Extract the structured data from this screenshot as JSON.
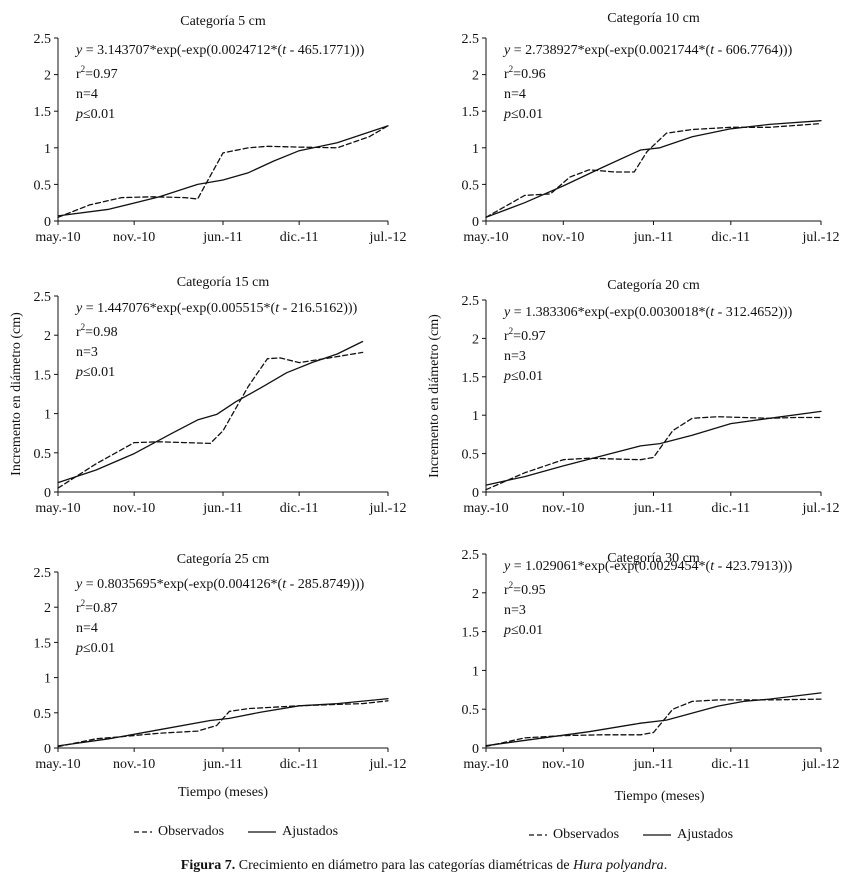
{
  "figure": {
    "caption_label": "Figura 7.",
    "caption_text": "Crecimiento en diámetro para las categorías diamétricas de",
    "caption_species": "Hura polyandra",
    "caption_end": ".",
    "legend_observed": "Observados",
    "legend_fitted": "Ajustados",
    "shared_ylabel": "Incremento en diámetro (cm)",
    "shared_xlabel": "Tiempo (meses)"
  },
  "chart_data": [
    {
      "type": "line",
      "title": "Categoría 5 cm",
      "x_ticks": [
        "may.-10",
        "nov.-10",
        "jun.-11",
        "dic.-11",
        "jul.-12"
      ],
      "y_ticks": [
        "0",
        "0.5",
        "1",
        "1.5",
        "2",
        "2.5"
      ],
      "ylim": [
        0,
        2.5
      ],
      "xlim": [
        0,
        26
      ],
      "equation": {
        "prefix": "y",
        "coef": " = 3.143707",
        "rest": "*exp(-exp(0.0024712*(",
        "t": "t",
        "tail": " - 465.1771)))"
      },
      "r2": {
        "r": "r",
        "sup": "2",
        "val": "=0.97"
      },
      "n": "n=4",
      "p": {
        "sym": "p",
        "val": "≤0.01"
      },
      "series": [
        {
          "name": "Observados",
          "x": [
            0,
            2.5,
            5,
            7.5,
            10,
            11,
            13,
            15,
            16.5,
            19,
            22,
            24.5,
            26
          ],
          "y": [
            0.05,
            0.22,
            0.32,
            0.33,
            0.32,
            0.3,
            0.93,
            1.0,
            1.02,
            1.01,
            1.0,
            1.15,
            1.3
          ]
        },
        {
          "name": "Ajustados",
          "x": [
            0,
            4,
            8,
            11,
            13,
            15,
            17,
            19,
            22,
            26
          ],
          "y": [
            0.07,
            0.16,
            0.33,
            0.5,
            0.56,
            0.66,
            0.82,
            0.96,
            1.07,
            1.3
          ]
        }
      ]
    },
    {
      "type": "line",
      "title": "Categoría 10 cm",
      "x_ticks": [
        "may.-10",
        "nov.-10",
        "jun.-11",
        "dic.-11",
        "jul.-12"
      ],
      "y_ticks": [
        "0",
        "0.5",
        "1",
        "1.5",
        "2",
        "2.5"
      ],
      "ylim": [
        0,
        2.5
      ],
      "xlim": [
        0,
        26
      ],
      "equation": {
        "prefix": "y",
        "coef": " = 2.738927",
        "rest": "*exp(-exp(0.0021744*(",
        "t": "t",
        "tail": " - 606.7764)))"
      },
      "r2": {
        "r": "r",
        "sup": "2",
        "val": "=0.96"
      },
      "n": "n=4",
      "p": {
        "sym": "p",
        "val": "≤0.01"
      },
      "series": [
        {
          "name": "Observados",
          "x": [
            0,
            3,
            5,
            6.5,
            8,
            10,
            11.5,
            12.5,
            14,
            16,
            19,
            22,
            26
          ],
          "y": [
            0.05,
            0.35,
            0.37,
            0.6,
            0.7,
            0.67,
            0.67,
            0.95,
            1.2,
            1.25,
            1.28,
            1.28,
            1.33
          ]
        },
        {
          "name": "Ajustados",
          "x": [
            0,
            3,
            6,
            9,
            12,
            13.5,
            16,
            19,
            22,
            26
          ],
          "y": [
            0.05,
            0.25,
            0.48,
            0.73,
            0.97,
            1.0,
            1.15,
            1.26,
            1.32,
            1.37
          ]
        }
      ]
    },
    {
      "type": "line",
      "title": "Categoría 15 cm",
      "x_ticks": [
        "may.-10",
        "nov.-10",
        "jun.-11",
        "dic.-11",
        "jul.-12"
      ],
      "y_ticks": [
        "0",
        "0.5",
        "1",
        "1.5",
        "2",
        "2.5"
      ],
      "ylim": [
        0,
        2.5
      ],
      "xlim": [
        0,
        26
      ],
      "equation": {
        "prefix": "y",
        "coef": " = 1.447076",
        "rest": "*exp(-exp(0.005515*(",
        "t": "t",
        "tail": " - 216.5162)))"
      },
      "r2": {
        "r": "r",
        "sup": "2",
        "val": "=0.98"
      },
      "n": "n=3",
      "p": {
        "sym": "p",
        "val": "≤0.01"
      },
      "series": [
        {
          "name": "Observados",
          "x": [
            0,
            3,
            6,
            8,
            10,
            12,
            13,
            15,
            16.5,
            17.5,
            19,
            21,
            24
          ],
          "y": [
            0.05,
            0.36,
            0.63,
            0.64,
            0.63,
            0.62,
            0.78,
            1.35,
            1.7,
            1.71,
            1.65,
            1.7,
            1.78
          ]
        },
        {
          "name": "Ajustados",
          "x": [
            0,
            3,
            6,
            9,
            11,
            12.5,
            14,
            16,
            18,
            20,
            22,
            24
          ],
          "y": [
            0.12,
            0.28,
            0.49,
            0.75,
            0.92,
            0.99,
            1.15,
            1.33,
            1.52,
            1.65,
            1.76,
            1.92
          ]
        }
      ]
    },
    {
      "type": "line",
      "title": "Categoría 20 cm",
      "x_ticks": [
        "may.-10",
        "nov.-10",
        "jun.-11",
        "dic.-11",
        "jul.-12"
      ],
      "y_ticks": [
        "0",
        "0.5",
        "1",
        "1.5",
        "2",
        "2.5"
      ],
      "ylim": [
        0,
        2.5
      ],
      "xlim": [
        0,
        26
      ],
      "equation": {
        "prefix": "y",
        "coef": " = 1.383306",
        "rest": "*exp(-exp(0.0030018*(",
        "t": "t",
        "tail": " - 312.4652)))"
      },
      "r2": {
        "r": "r",
        "sup": "2",
        "val": "=0.97"
      },
      "n": "n=3",
      "p": {
        "sym": "p",
        "val": "≤0.01"
      },
      "series": [
        {
          "name": "Observados",
          "x": [
            0,
            3,
            6,
            8,
            10,
            12,
            13,
            14.5,
            16,
            18,
            20,
            22,
            24,
            26
          ],
          "y": [
            0.03,
            0.25,
            0.42,
            0.44,
            0.43,
            0.42,
            0.45,
            0.8,
            0.96,
            0.98,
            0.97,
            0.96,
            0.97,
            0.97
          ]
        },
        {
          "name": "Ajustados",
          "x": [
            0,
            3,
            6,
            9,
            12,
            13.5,
            16,
            19,
            22,
            26
          ],
          "y": [
            0.09,
            0.2,
            0.34,
            0.47,
            0.6,
            0.63,
            0.74,
            0.89,
            0.96,
            1.05
          ]
        }
      ]
    },
    {
      "type": "line",
      "title": "Categoría 25 cm",
      "x_ticks": [
        "may.-10",
        "nov.-10",
        "jun.-11",
        "dic.-11",
        "jul.-12"
      ],
      "y_ticks": [
        "0",
        "0.5",
        "1",
        "1.5",
        "2",
        "2.5"
      ],
      "ylim": [
        0,
        2.5
      ],
      "xlim": [
        0,
        26
      ],
      "equation": {
        "prefix": "y",
        "coef": " = 0.8035695",
        "rest": "*exp(-exp(0.004126*(",
        "t": "t",
        "tail": " - 285.8749)))"
      },
      "r2": {
        "r": "r",
        "sup": "2",
        "val": "=0.87"
      },
      "n": "n=4",
      "p": {
        "sym": "p",
        "val": "≤0.01"
      },
      "series": [
        {
          "name": "Observados",
          "x": [
            0,
            3,
            5,
            8,
            11,
            12.5,
            13.5,
            15,
            17,
            19,
            22,
            24,
            26
          ],
          "y": [
            0.02,
            0.13,
            0.16,
            0.21,
            0.24,
            0.32,
            0.52,
            0.56,
            0.58,
            0.6,
            0.62,
            0.63,
            0.67
          ]
        },
        {
          "name": "Ajustados",
          "x": [
            0,
            4,
            8,
            12,
            13.5,
            16,
            19,
            22,
            26
          ],
          "y": [
            0.03,
            0.13,
            0.26,
            0.39,
            0.42,
            0.51,
            0.6,
            0.63,
            0.7
          ]
        }
      ]
    },
    {
      "type": "line",
      "title": "Categoría 30 cm",
      "x_ticks": [
        "may.-10",
        "nov.-10",
        "jun.-11",
        "dic.-11",
        "jul.-12"
      ],
      "y_ticks": [
        "0",
        "0.5",
        "1",
        "1.5",
        "2",
        "2.5"
      ],
      "ylim": [
        0,
        2.5
      ],
      "xlim": [
        0,
        26
      ],
      "equation": {
        "prefix": "y",
        "coef": " = 1.029061",
        "rest": "*exp(-exp(0.0029454*(",
        "t": "t",
        "tail": " - 423.7913)))"
      },
      "r2": {
        "r": "r",
        "sup": "2",
        "val": "=0.95"
      },
      "n": "n=3",
      "p": {
        "sym": "p",
        "val": "≤0.01"
      },
      "series": [
        {
          "name": "Observados",
          "x": [
            0,
            3,
            6,
            9,
            12,
            13,
            14.5,
            16,
            18,
            20,
            22,
            26
          ],
          "y": [
            0.02,
            0.13,
            0.16,
            0.17,
            0.17,
            0.2,
            0.5,
            0.6,
            0.62,
            0.62,
            0.62,
            0.63
          ]
        },
        {
          "name": "Ajustados",
          "x": [
            0,
            4,
            8,
            12,
            14,
            16,
            18,
            20,
            22,
            26
          ],
          "y": [
            0.03,
            0.12,
            0.21,
            0.32,
            0.36,
            0.45,
            0.54,
            0.6,
            0.63,
            0.71
          ]
        }
      ]
    }
  ]
}
